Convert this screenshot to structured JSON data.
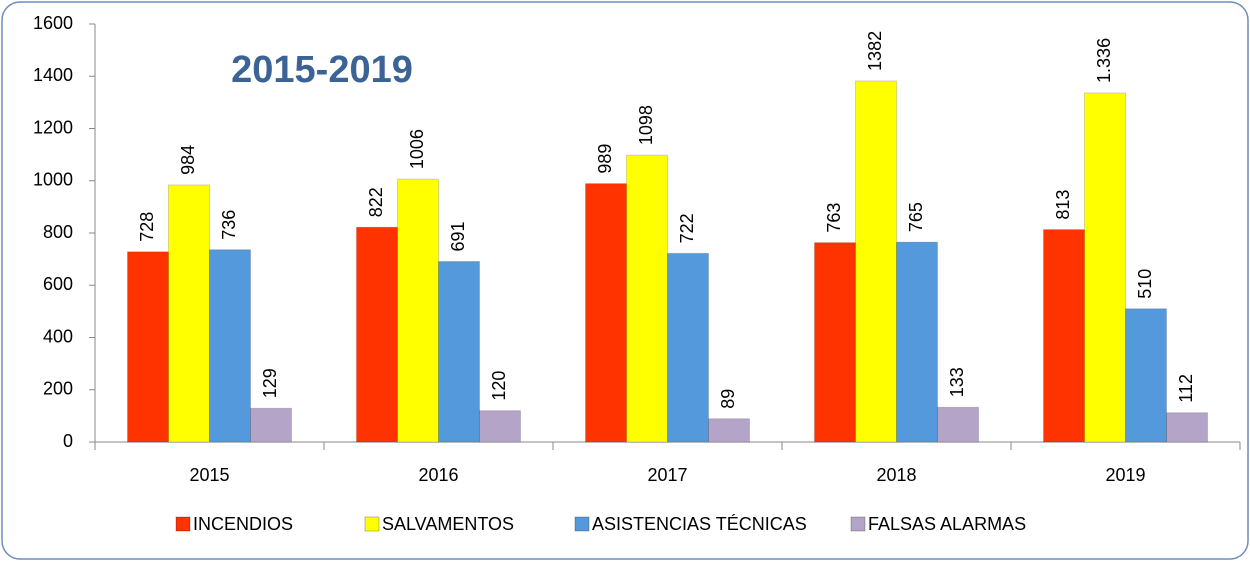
{
  "chart_data": {
    "type": "bar",
    "title": "2015-2019",
    "categories": [
      "2015",
      "2016",
      "2017",
      "2018",
      "2019"
    ],
    "series": [
      {
        "name": "INCENDIOS",
        "color": "#ff3300",
        "values": [
          728,
          822,
          989,
          763,
          813
        ]
      },
      {
        "name": "SALVAMENTOS",
        "color": "#ffff00",
        "values": [
          984,
          1006,
          1098,
          1382,
          1336
        ],
        "value_labels": [
          "984",
          "1006",
          "1098",
          "1382",
          "1.336"
        ]
      },
      {
        "name": "ASISTENCIAS TÉCNICAS",
        "color": "#5599dd",
        "values": [
          736,
          691,
          722,
          765,
          510
        ]
      },
      {
        "name": "FALSAS ALARMAS",
        "color": "#b4a5c8",
        "values": [
          129,
          120,
          89,
          133,
          112
        ]
      }
    ],
    "ylim": [
      0,
      1600
    ],
    "yticks": [
      0,
      200,
      400,
      600,
      800,
      1000,
      1200,
      1400,
      1600
    ],
    "grid": false,
    "legend": "bottom"
  }
}
